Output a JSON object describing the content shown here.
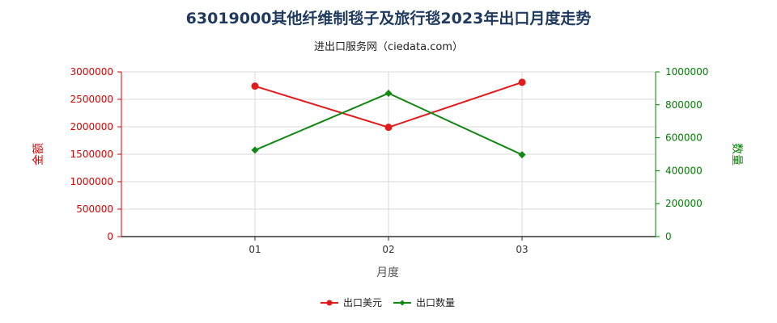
{
  "chart_data": {
    "type": "line",
    "title": "63019000其他纤维制毯子及旅行毯2023年出口月度走势",
    "subtitle": "进出口服务网（ciedata.com）",
    "xlabel": "月度",
    "ylabel_left": "金额",
    "ylabel_right": "数量",
    "categories": [
      "01",
      "02",
      "03"
    ],
    "y_left": {
      "range": [
        0,
        3000000
      ],
      "ticks": [
        "0",
        "500000",
        "1000000",
        "1500000",
        "2000000",
        "2500000",
        "3000000"
      ]
    },
    "y_right": {
      "range": [
        0,
        1000000
      ],
      "ticks": [
        "0",
        "200000",
        "400000",
        "600000",
        "800000",
        "1000000"
      ]
    },
    "series": [
      {
        "name": "出口美元",
        "axis": "left",
        "color": "#e31a1c",
        "values": [
          2740000,
          1990000,
          2810000
        ]
      },
      {
        "name": "出口数量",
        "axis": "right",
        "color": "#118811",
        "values": [
          525000,
          870000,
          497000
        ]
      }
    ],
    "grid": true,
    "legend_position": "bottom"
  }
}
